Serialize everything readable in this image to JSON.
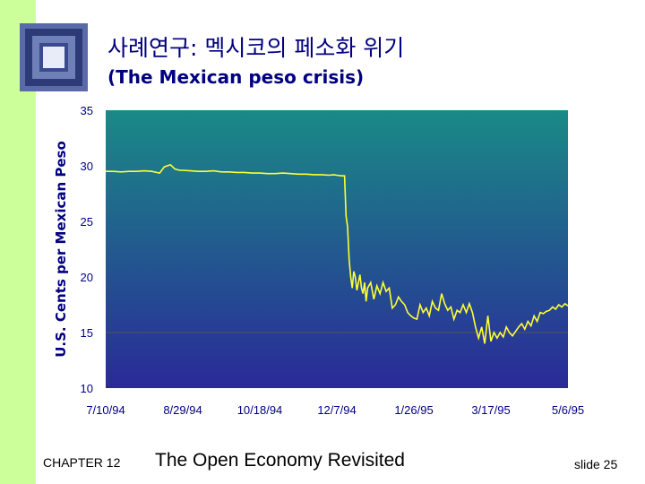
{
  "slide": {
    "title": "사례연구: 멕시코의 페소화 위기",
    "subtitle": "(The Mexican peso crisis)"
  },
  "footer": {
    "chapter": "CHAPTER 12",
    "course_title": "The Open Economy Revisited",
    "slide_number": "slide 25"
  },
  "colors": {
    "accent_bar": "#ccff99",
    "title": "#000080",
    "gradient_top": "#1a8a86",
    "gradient_bottom": "#2a2a98",
    "series_line": "#ffff33",
    "reference_line": "#555555"
  },
  "chart_data": {
    "type": "line",
    "title": "",
    "xlabel": "",
    "ylabel": "U.S. Cents per Mexican Peso",
    "ylim": [
      10,
      35
    ],
    "yticks": [
      10,
      15,
      20,
      25,
      30,
      35
    ],
    "xlim_day": [
      0,
      300
    ],
    "xticks": [
      {
        "day": 0,
        "label": "7/10/94"
      },
      {
        "day": 50,
        "label": "8/29/94"
      },
      {
        "day": 100,
        "label": "10/18/94"
      },
      {
        "day": 150,
        "label": "12/7/94"
      },
      {
        "day": 200,
        "label": "1/26/95"
      },
      {
        "day": 250,
        "label": "3/17/95"
      },
      {
        "day": 300,
        "label": "5/6/95"
      }
    ],
    "reference_line": 15,
    "series": [
      {
        "name": "U.S. cents per Mexican peso",
        "x": [
          0,
          5,
          10,
          15,
          20,
          25,
          30,
          35,
          38,
          42,
          45,
          48,
          50,
          55,
          60,
          65,
          70,
          75,
          80,
          85,
          90,
          95,
          100,
          105,
          110,
          115,
          120,
          125,
          130,
          135,
          140,
          145,
          148,
          150,
          153,
          155,
          156,
          157,
          158,
          159,
          160,
          161,
          162,
          163,
          164,
          165,
          166,
          167,
          168,
          169,
          170,
          172,
          174,
          176,
          178,
          180,
          182,
          184,
          186,
          188,
          190,
          192,
          194,
          196,
          198,
          200,
          202,
          204,
          206,
          208,
          210,
          212,
          214,
          216,
          218,
          220,
          222,
          224,
          226,
          228,
          230,
          232,
          234,
          236,
          238,
          240,
          242,
          244,
          246,
          248,
          250,
          252,
          254,
          256,
          258,
          260,
          262,
          264,
          266,
          268,
          270,
          272,
          274,
          276,
          278,
          280,
          282,
          284,
          286,
          288,
          290,
          292,
          294,
          296,
          298,
          300
        ],
        "y": [
          29.5,
          29.5,
          29.45,
          29.5,
          29.5,
          29.55,
          29.5,
          29.35,
          29.9,
          30.1,
          29.7,
          29.6,
          29.6,
          29.55,
          29.5,
          29.5,
          29.55,
          29.45,
          29.45,
          29.4,
          29.4,
          29.35,
          29.35,
          29.3,
          29.3,
          29.35,
          29.3,
          29.25,
          29.25,
          29.2,
          29.2,
          29.15,
          29.2,
          29.15,
          29.1,
          29.1,
          25.5,
          24.5,
          21.5,
          20.0,
          19.0,
          20.5,
          20.0,
          18.8,
          19.5,
          20.2,
          19.0,
          18.5,
          19.5,
          17.8,
          19.0,
          19.5,
          18.0,
          19.2,
          18.5,
          19.5,
          18.7,
          19.0,
          17.2,
          17.5,
          18.2,
          17.8,
          17.5,
          16.8,
          16.5,
          16.3,
          16.2,
          17.5,
          16.8,
          17.2,
          16.5,
          17.8,
          17.2,
          17.0,
          18.5,
          17.6,
          17.0,
          17.3,
          16.2,
          17.0,
          16.8,
          17.5,
          16.8,
          17.6,
          16.8,
          15.5,
          14.5,
          15.5,
          14.0,
          16.5,
          14.2,
          15.0,
          14.5,
          15.0,
          14.6,
          15.5,
          15.0,
          14.7,
          15.1,
          15.5,
          15.8,
          15.3,
          16.0,
          15.6,
          16.5,
          16.0,
          16.8,
          16.7,
          16.9,
          17.0,
          17.3,
          17.1,
          17.5,
          17.3,
          17.6,
          17.4
        ]
      }
    ]
  }
}
